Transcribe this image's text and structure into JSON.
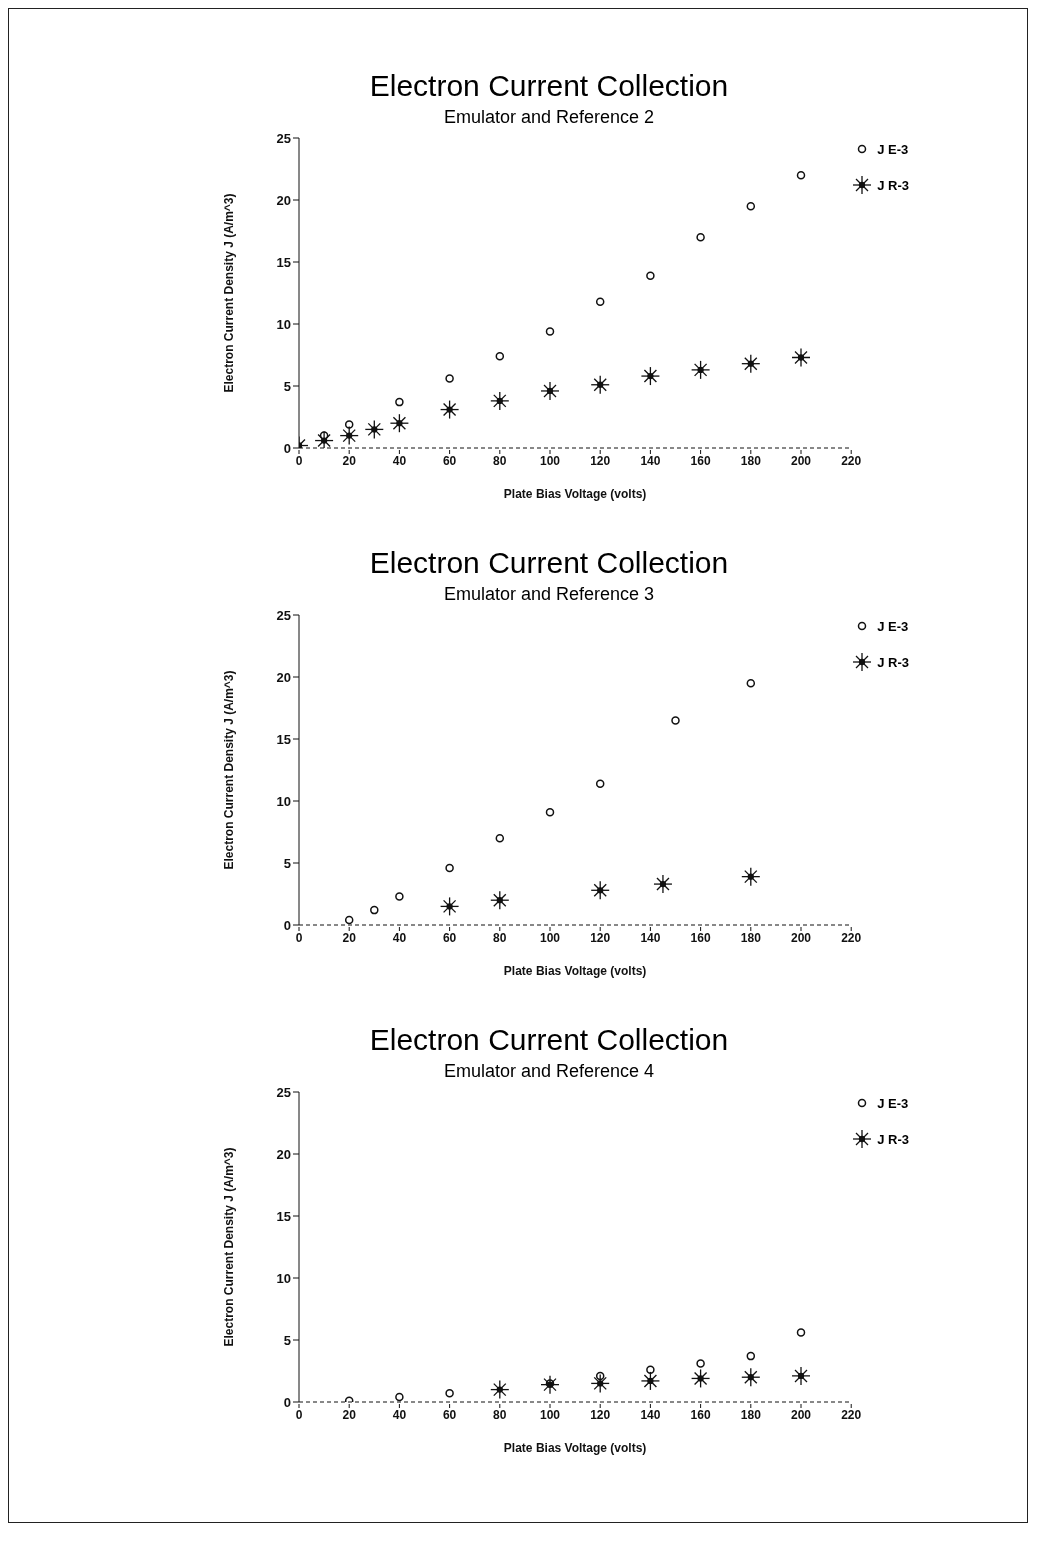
{
  "chart_data": [
    {
      "type": "scatter",
      "title": "Electron Current Collection",
      "subtitle": "Emulator and Reference 2",
      "xlabel": "Plate Bias Voltage (volts)",
      "ylabel": "Electron Current Density J (A/m^3)",
      "xlim": [
        0,
        220
      ],
      "xticks": [
        0,
        20,
        40,
        60,
        80,
        100,
        120,
        140,
        160,
        180,
        200,
        220
      ],
      "ylim": [
        0,
        25
      ],
      "yticks": [
        0,
        5,
        10,
        15,
        20,
        25
      ],
      "legend": "top right",
      "grid": false,
      "series": [
        {
          "name": "J E-3",
          "color": "#111111",
          "marker": "circle",
          "x": [
            10,
            20,
            40,
            60,
            80,
            100,
            120,
            140,
            160,
            180,
            200
          ],
          "values": [
            1.0,
            1.9,
            3.7,
            5.6,
            7.4,
            9.4,
            11.8,
            13.9,
            17.0,
            19.5,
            22.0
          ]
        },
        {
          "name": "J R-3",
          "color": "#111111",
          "marker": "cross",
          "x": [
            0,
            10,
            20,
            30,
            40,
            60,
            80,
            100,
            120,
            140,
            160,
            180,
            200
          ],
          "values": [
            0.2,
            0.6,
            1.0,
            1.5,
            2.0,
            3.1,
            3.8,
            4.6,
            5.1,
            5.8,
            6.3,
            6.8,
            7.3
          ]
        }
      ]
    },
    {
      "type": "scatter",
      "title": "Electron Current Collection",
      "subtitle": "Emulator and Reference 3",
      "xlabel": "Plate Bias Voltage (volts)",
      "ylabel": "Electron Current Density J (A/m^3)",
      "xlim": [
        0,
        220
      ],
      "xticks": [
        0,
        20,
        40,
        60,
        80,
        100,
        120,
        140,
        160,
        180,
        200,
        220
      ],
      "ylim": [
        0,
        25
      ],
      "yticks": [
        0,
        5,
        10,
        15,
        20,
        25
      ],
      "legend": "top right",
      "grid": false,
      "series": [
        {
          "name": "J E-3",
          "color": "#111111",
          "marker": "circle",
          "x": [
            20,
            30,
            40,
            60,
            80,
            100,
            120,
            150,
            180
          ],
          "values": [
            0.4,
            1.2,
            2.3,
            4.6,
            7.0,
            9.1,
            11.4,
            16.5,
            19.5
          ]
        },
        {
          "name": "J R-3",
          "color": "#111111",
          "marker": "cross",
          "x": [
            60,
            80,
            120,
            145,
            180
          ],
          "values": [
            1.5,
            2.0,
            2.8,
            3.3,
            3.9
          ]
        }
      ]
    },
    {
      "type": "scatter",
      "title": "Electron Current Collection",
      "subtitle": "Emulator and Reference 4",
      "xlabel": "Plate Bias Voltage (volts)",
      "ylabel": "Electron Current Density J (A/m^3)",
      "xlim": [
        0,
        220
      ],
      "xticks": [
        0,
        20,
        40,
        60,
        80,
        100,
        120,
        140,
        160,
        180,
        200,
        220
      ],
      "ylim": [
        0,
        25
      ],
      "yticks": [
        0,
        5,
        10,
        15,
        20,
        25
      ],
      "legend": "top right",
      "grid": false,
      "series": [
        {
          "name": "J E-3",
          "color": "#111111",
          "marker": "circle",
          "x": [
            20,
            40,
            60,
            100,
            120,
            140,
            160,
            180,
            200
          ],
          "values": [
            0.1,
            0.4,
            0.7,
            1.5,
            2.1,
            2.6,
            3.1,
            3.7,
            5.6
          ]
        },
        {
          "name": "J R-3",
          "color": "#111111",
          "marker": "cross",
          "x": [
            80,
            100,
            120,
            140,
            160,
            180,
            200
          ],
          "values": [
            1.0,
            1.4,
            1.5,
            1.7,
            1.9,
            2.0,
            2.1
          ]
        }
      ]
    }
  ]
}
